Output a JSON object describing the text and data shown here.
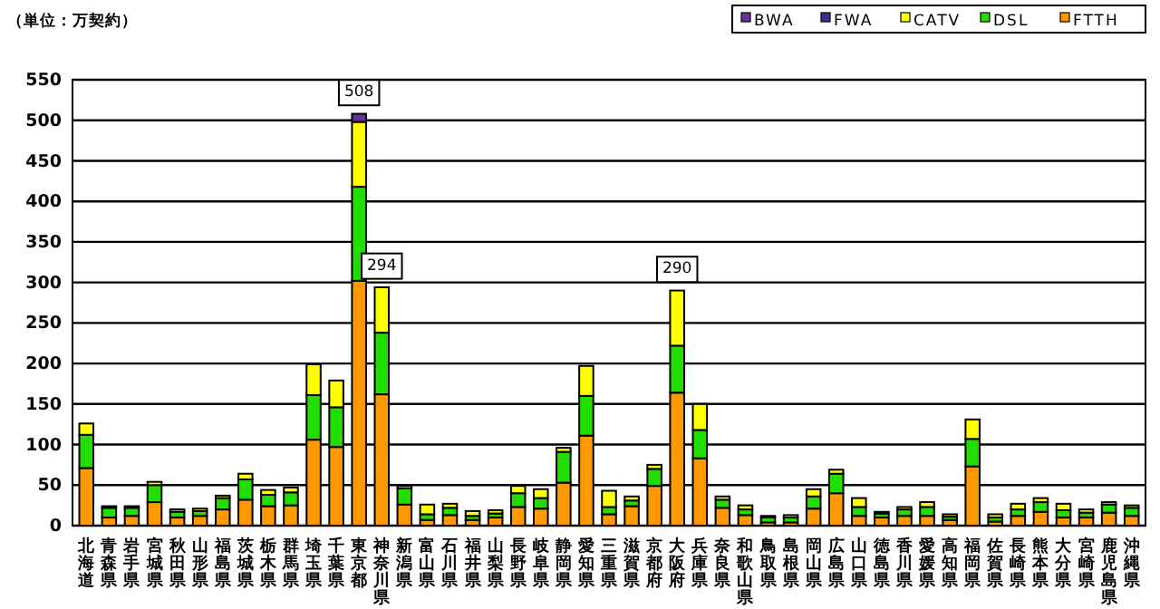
{
  "chart_data": {
    "type": "bar",
    "stacked": true,
    "ylabel": "（単位：万契約）",
    "categories": [
      "北海道",
      "青森県",
      "岩手県",
      "宮城県",
      "秋田県",
      "山形県",
      "福島県",
      "茨城県",
      "栃木県",
      "群馬県",
      "埼玉県",
      "千葉県",
      "東京都",
      "神奈川県",
      "新潟県",
      "富山県",
      "石川県",
      "福井県",
      "山梨県",
      "長野県",
      "岐阜県",
      "静岡県",
      "愛知県",
      "三重県",
      "滋賀県",
      "京都府",
      "大阪府",
      "兵庫県",
      "奈良県",
      "和歌山県",
      "鳥取県",
      "島根県",
      "岡山県",
      "広島県",
      "山口県",
      "徳島県",
      "香川県",
      "愛媛県",
      "高知県",
      "福岡県",
      "佐賀県",
      "長崎県",
      "熊本県",
      "大分県",
      "宮崎県",
      "鹿児島県",
      "沖縄県"
    ],
    "series": [
      {
        "name": "FTTH",
        "color": "#ff9900",
        "values": [
          71,
          10,
          12,
          29,
          10,
          12,
          20,
          32,
          24,
          25,
          106,
          97,
          302,
          162,
          26,
          7,
          13,
          7,
          10,
          23,
          21,
          53,
          111,
          14,
          24,
          49,
          164,
          83,
          22,
          13,
          4,
          4,
          21,
          40,
          12,
          10,
          12,
          12,
          7,
          73,
          5,
          12,
          17,
          10,
          10,
          16,
          12
        ]
      },
      {
        "name": "DSL",
        "color": "#22dd00",
        "values": [
          41,
          12,
          10,
          21,
          7,
          6,
          14,
          25,
          14,
          16,
          55,
          49,
          116,
          76,
          20,
          7,
          9,
          5,
          5,
          17,
          13,
          38,
          49,
          9,
          7,
          21,
          58,
          35,
          10,
          7,
          6,
          6,
          15,
          24,
          11,
          5,
          8,
          11,
          4,
          34,
          5,
          8,
          12,
          9,
          6,
          10,
          10
        ]
      },
      {
        "name": "CATV",
        "color": "#ffff00",
        "values": [
          14,
          2,
          2,
          4,
          3,
          3,
          3,
          7,
          6,
          6,
          38,
          33,
          80,
          56,
          3,
          12,
          5,
          6,
          4,
          9,
          11,
          5,
          37,
          20,
          5,
          5,
          68,
          32,
          4,
          5,
          2,
          3,
          9,
          5,
          11,
          2,
          3,
          6,
          3,
          24,
          4,
          7,
          5,
          8,
          4,
          3,
          3
        ]
      },
      {
        "name": "FWA",
        "color": "#333399",
        "values": [
          0,
          0,
          0,
          0,
          0,
          0,
          0,
          0,
          0,
          0,
          0,
          0,
          0,
          0,
          0,
          0,
          0,
          0,
          0,
          0,
          0,
          0,
          0,
          0,
          0,
          0,
          0,
          0,
          0,
          0,
          0,
          0,
          0,
          0,
          0,
          0,
          0,
          0,
          0,
          0,
          0,
          0,
          0,
          0,
          0,
          0,
          0
        ]
      },
      {
        "name": "BWA",
        "color": "#663399",
        "values": [
          0,
          0,
          0,
          0,
          0,
          0,
          0,
          0,
          0,
          0,
          0,
          0,
          10,
          0,
          0,
          0,
          0,
          0,
          0,
          0,
          0,
          0,
          0,
          0,
          0,
          0,
          0,
          0,
          0,
          0,
          0,
          0,
          0,
          0,
          0,
          0,
          0,
          0,
          0,
          0,
          0,
          0,
          0,
          0,
          0,
          0,
          0
        ]
      }
    ],
    "ylim": [
      0,
      550
    ],
    "yticks": [
      0,
      50,
      100,
      150,
      200,
      250,
      300,
      350,
      400,
      450,
      500,
      550
    ],
    "grid": "y",
    "legend": "top right",
    "annotations": [
      {
        "text": "508",
        "x": "東京都",
        "y": 508
      },
      {
        "text": "294",
        "x": "神奈川県",
        "y": 294
      },
      {
        "text": "290",
        "x": "大阪府",
        "y": 290
      }
    ]
  }
}
